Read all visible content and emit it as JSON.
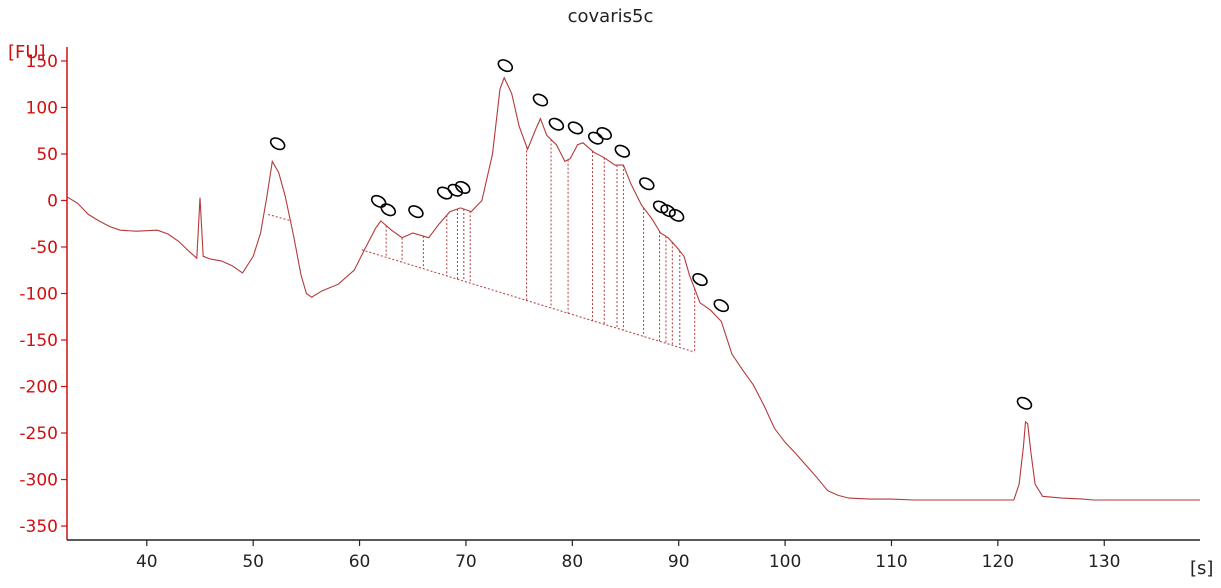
{
  "chart_data": {
    "type": "line",
    "title": "covaris5c",
    "ylabel": "[FU]",
    "xlabel": "[s]",
    "xlim": [
      32.5,
      139
    ],
    "ylim": [
      -365,
      165
    ],
    "x_ticks": [
      40,
      50,
      60,
      70,
      80,
      90,
      100,
      110,
      120,
      130
    ],
    "y_ticks": [
      150,
      100,
      50,
      0,
      -50,
      -100,
      -150,
      -200,
      -250,
      -300,
      -350
    ],
    "colors": {
      "trace": "#b33a3a",
      "axis_y": "#d01010",
      "axis_x": "#222222",
      "marker": "#000000"
    },
    "series": [
      {
        "values": [
          [
            32.5,
            4
          ],
          [
            33.5,
            -3
          ],
          [
            34.5,
            -15
          ],
          [
            35.5,
            -22
          ],
          [
            36.5,
            -28
          ],
          [
            37.5,
            -32
          ],
          [
            39,
            -33
          ],
          [
            41,
            -32
          ],
          [
            42,
            -36
          ],
          [
            43,
            -44
          ],
          [
            44,
            -55
          ],
          [
            44.7,
            -62
          ],
          [
            45,
            3
          ],
          [
            45.3,
            -60
          ],
          [
            46,
            -63
          ],
          [
            47,
            -65
          ],
          [
            48,
            -70
          ],
          [
            49,
            -78
          ],
          [
            50,
            -60
          ],
          [
            50.7,
            -35
          ],
          [
            51.3,
            5
          ],
          [
            51.8,
            42
          ],
          [
            52.4,
            30
          ],
          [
            53,
            5
          ],
          [
            53.8,
            -38
          ],
          [
            54.5,
            -80
          ],
          [
            55,
            -100
          ],
          [
            55.5,
            -104
          ],
          [
            56.5,
            -97
          ],
          [
            58,
            -90
          ],
          [
            59.5,
            -75
          ],
          [
            60.5,
            -52
          ],
          [
            61.5,
            -30
          ],
          [
            62,
            -22
          ],
          [
            63,
            -32
          ],
          [
            64,
            -40
          ],
          [
            65,
            -35
          ],
          [
            66.5,
            -40
          ],
          [
            67.5,
            -25
          ],
          [
            68.5,
            -12
          ],
          [
            69.5,
            -8
          ],
          [
            70.5,
            -12
          ],
          [
            71.5,
            0
          ],
          [
            72.5,
            50
          ],
          [
            73.2,
            120
          ],
          [
            73.6,
            132
          ],
          [
            74.3,
            115
          ],
          [
            75,
            80
          ],
          [
            75.8,
            55
          ],
          [
            76.5,
            75
          ],
          [
            77,
            88
          ],
          [
            77.6,
            70
          ],
          [
            78.5,
            60
          ],
          [
            79.3,
            42
          ],
          [
            79.8,
            45
          ],
          [
            80.5,
            60
          ],
          [
            81,
            62
          ],
          [
            82,
            52
          ],
          [
            83,
            46
          ],
          [
            84,
            38
          ],
          [
            84.8,
            38
          ],
          [
            85.5,
            18
          ],
          [
            86.5,
            -5
          ],
          [
            87.5,
            -20
          ],
          [
            88.3,
            -35
          ],
          [
            89,
            -40
          ],
          [
            89.8,
            -50
          ],
          [
            90.5,
            -60
          ],
          [
            91,
            -80
          ],
          [
            92,
            -110
          ],
          [
            93,
            -118
          ],
          [
            94,
            -130
          ],
          [
            95,
            -165
          ],
          [
            96,
            -182
          ],
          [
            97,
            -198
          ],
          [
            98,
            -220
          ],
          [
            99,
            -245
          ],
          [
            100,
            -260
          ],
          [
            101,
            -272
          ],
          [
            102,
            -285
          ],
          [
            103,
            -298
          ],
          [
            104,
            -312
          ],
          [
            105,
            -317
          ],
          [
            106,
            -320
          ],
          [
            108,
            -321
          ],
          [
            110,
            -321
          ],
          [
            112,
            -322
          ],
          [
            116,
            -322
          ],
          [
            120,
            -322
          ],
          [
            121.5,
            -322
          ],
          [
            122,
            -305
          ],
          [
            122.4,
            -265
          ],
          [
            122.6,
            -238
          ],
          [
            122.8,
            -240
          ],
          [
            123.1,
            -270
          ],
          [
            123.5,
            -305
          ],
          [
            124.2,
            -318
          ],
          [
            126,
            -320
          ],
          [
            128,
            -321
          ],
          [
            129,
            -322
          ],
          [
            134,
            -322
          ],
          [
            139,
            -322
          ]
        ]
      }
    ],
    "baseline": [
      [
        60.2,
        -53
      ],
      [
        91.5,
        -163
      ]
    ],
    "marked_peaks": [
      {
        "x": 52.3,
        "y": 61
      },
      {
        "x": 61.8,
        "y": -1
      },
      {
        "x": 62.7,
        "y": -10
      },
      {
        "x": 65.3,
        "y": -12
      },
      {
        "x": 68,
        "y": 8
      },
      {
        "x": 69,
        "y": 11
      },
      {
        "x": 69.7,
        "y": 14
      },
      {
        "x": 73.7,
        "y": 145
      },
      {
        "x": 77,
        "y": 108
      },
      {
        "x": 78.5,
        "y": 82
      },
      {
        "x": 80.3,
        "y": 78
      },
      {
        "x": 82.2,
        "y": 67
      },
      {
        "x": 83,
        "y": 72
      },
      {
        "x": 84.7,
        "y": 53
      },
      {
        "x": 87,
        "y": 18
      },
      {
        "x": 88.3,
        "y": -7
      },
      {
        "x": 89,
        "y": -11
      },
      {
        "x": 89.8,
        "y": -16
      },
      {
        "x": 92,
        "y": -85
      },
      {
        "x": 94,
        "y": -113
      },
      {
        "x": 122.5,
        "y": -218
      }
    ],
    "grid": false,
    "legend": "none"
  }
}
